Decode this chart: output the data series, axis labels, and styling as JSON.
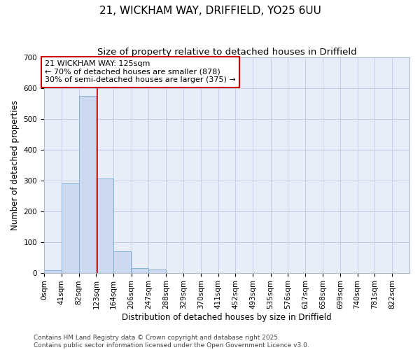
{
  "title": "21, WICKHAM WAY, DRIFFIELD, YO25 6UU",
  "subtitle": "Size of property relative to detached houses in Driffield",
  "xlabel": "Distribution of detached houses by size in Driffield",
  "ylabel": "Number of detached properties",
  "bin_labels": [
    "0sqm",
    "41sqm",
    "82sqm",
    "123sqm",
    "164sqm",
    "206sqm",
    "247sqm",
    "288sqm",
    "329sqm",
    "370sqm",
    "411sqm",
    "452sqm",
    "493sqm",
    "535sqm",
    "576sqm",
    "617sqm",
    "658sqm",
    "699sqm",
    "740sqm",
    "781sqm",
    "822sqm"
  ],
  "bin_edges": [
    0,
    41,
    82,
    123,
    164,
    206,
    247,
    288,
    329,
    370,
    411,
    452,
    493,
    535,
    576,
    617,
    658,
    699,
    740,
    781,
    822
  ],
  "bar_heights": [
    8,
    290,
    575,
    305,
    70,
    15,
    10,
    0,
    0,
    0,
    0,
    0,
    0,
    0,
    0,
    0,
    0,
    0,
    0,
    0
  ],
  "bar_color": "#ccd9ee",
  "bar_edge_color": "#7aabd4",
  "grid_color": "#c5cfe8",
  "bg_color": "#e8eef8",
  "vline_x": 125,
  "vline_color": "#cc0000",
  "ylim": [
    0,
    700
  ],
  "yticks": [
    0,
    100,
    200,
    300,
    400,
    500,
    600,
    700
  ],
  "annotation_line1": "21 WICKHAM WAY: 125sqm",
  "annotation_line2": "← 70% of detached houses are smaller (878)",
  "annotation_line3": "30% of semi-detached houses are larger (375) →",
  "footer_text": "Contains HM Land Registry data © Crown copyright and database right 2025.\nContains public sector information licensed under the Open Government Licence v3.0.",
  "title_fontsize": 11,
  "subtitle_fontsize": 9.5,
  "label_fontsize": 8.5,
  "tick_fontsize": 7.5,
  "annotation_fontsize": 8,
  "footer_fontsize": 6.5
}
